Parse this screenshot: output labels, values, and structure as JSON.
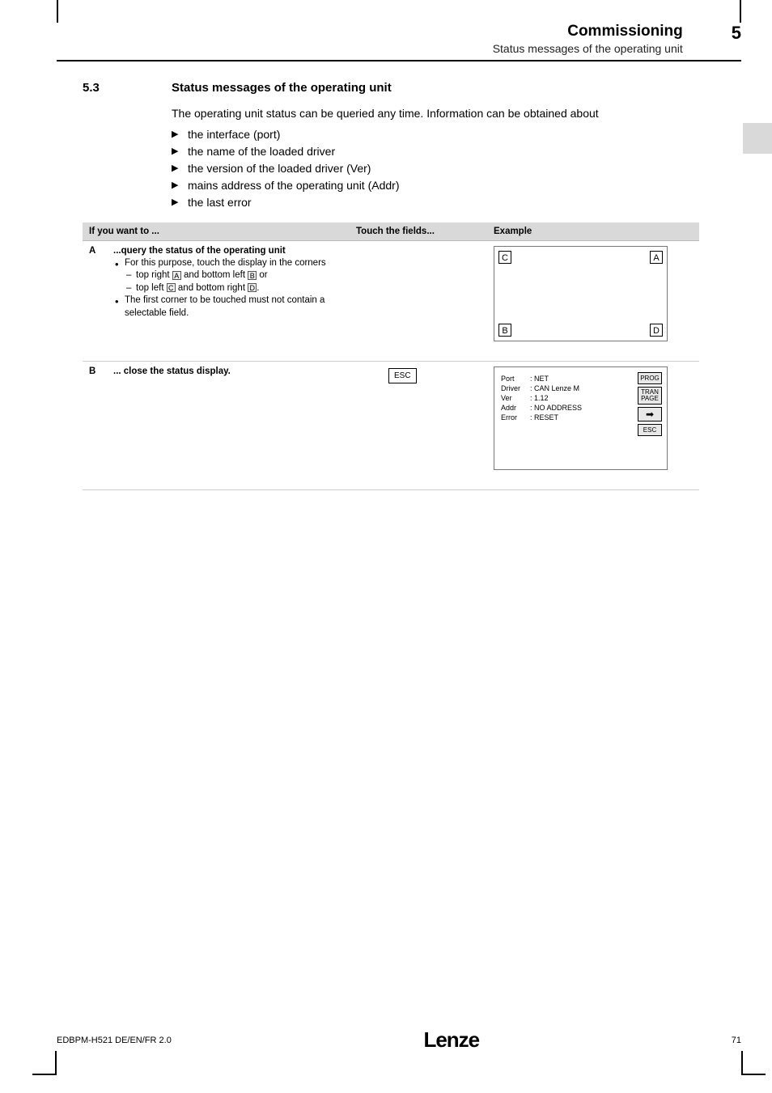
{
  "header": {
    "title": "Commissioning",
    "subtitle": "Status messages of the operating unit",
    "chapter": "5"
  },
  "section": {
    "number": "5.3",
    "title": "Status messages of the operating unit",
    "intro": "The operating unit status can be queried any time. Information can be obtained about",
    "bullets": [
      "the interface (port)",
      "the name of the loaded driver",
      "the version of the loaded driver (Ver)",
      "mains address of the operating unit (Addr)",
      "the last error"
    ]
  },
  "table": {
    "headers": [
      "If you want to ...",
      "Touch the fields...",
      "Example"
    ],
    "rowA": {
      "letter": "A",
      "title": "...query the status of the operating unit",
      "b1": "For this purpose, touch the display in the corners",
      "b1a_pre": "top right ",
      "b1a_mid": " and bottom left ",
      "b1a_post": " or",
      "b1a_l1": "A",
      "b1a_l2": "B",
      "b1b_pre": "top left ",
      "b1b_mid": " and bottom right ",
      "b1b_post": ".",
      "b1b_l1": "C",
      "b1b_l2": "D",
      "b2": "The first corner to be touched must not contain a selectable field.",
      "corners": {
        "tl": "C",
        "tr": "A",
        "bl": "B",
        "br": "D"
      }
    },
    "rowB": {
      "letter": "B",
      "title": "... close the status display.",
      "esc": "ESC",
      "info": {
        "Port": ": NET",
        "Driver": ": CAN Lenze M",
        "Ver": ": 1.12",
        "Addr": ": NO ADDRESS",
        "Error": ": RESET"
      },
      "btns": {
        "prog": "PROG",
        "tran": "TRAN PAGE",
        "esc": "ESC"
      }
    }
  },
  "footer": {
    "left": "EDBPM-H521  DE/EN/FR  2.0",
    "logo": "Lenze",
    "page": "71"
  }
}
